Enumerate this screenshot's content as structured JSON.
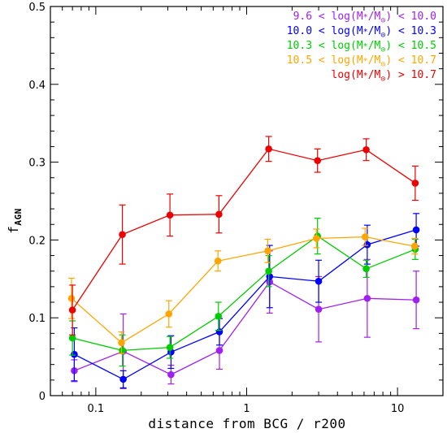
{
  "chart_data": {
    "type": "line",
    "xlabel": "distance from BCG / r200",
    "ylabel": "f",
    "ylabel_sub": "AGN",
    "xscale": "log",
    "xlim": [
      0.05,
      20
    ],
    "ylim": [
      0,
      0.5
    ],
    "x_ticks": [
      {
        "value": 0.1,
        "label": "0.1"
      },
      {
        "value": 1,
        "label": "1"
      },
      {
        "value": 10,
        "label": "10"
      }
    ],
    "y_ticks": [
      {
        "value": 0,
        "label": "0"
      },
      {
        "value": 0.1,
        "label": "0.1"
      },
      {
        "value": 0.2,
        "label": "0.2"
      },
      {
        "value": 0.3,
        "label": "0.3"
      },
      {
        "value": 0.4,
        "label": "0.4"
      },
      {
        "value": 0.5,
        "label": "0.5"
      }
    ],
    "legend_position": "top-right",
    "series": [
      {
        "name": "9.6 < log(M*/M⊙) < 10.0",
        "color": "#a020f0",
        "points": [
          {
            "x": 0.072,
            "y": 0.032,
            "err": 0.014
          },
          {
            "x": 0.152,
            "y": 0.057,
            "err": 0.048
          },
          {
            "x": 0.315,
            "y": 0.027,
            "err": 0.012
          },
          {
            "x": 0.66,
            "y": 0.058,
            "err": 0.024
          },
          {
            "x": 1.42,
            "y": 0.146,
            "err": 0.04
          },
          {
            "x": 3.0,
            "y": 0.111,
            "err": 0.042
          },
          {
            "x": 6.3,
            "y": 0.125,
            "err": 0.05
          },
          {
            "x": 13.3,
            "y": 0.123,
            "err": 0.037
          }
        ]
      },
      {
        "name": "10.0 < log(M*/M⊙) < 10.3",
        "color": "#0000ff",
        "points": [
          {
            "x": 0.072,
            "y": 0.053,
            "err": 0.034
          },
          {
            "x": 0.152,
            "y": 0.021,
            "err": 0.011
          },
          {
            "x": 0.315,
            "y": 0.056,
            "err": 0.021
          },
          {
            "x": 0.66,
            "y": 0.082,
            "err": 0.017
          },
          {
            "x": 1.42,
            "y": 0.153,
            "err": 0.04
          },
          {
            "x": 3.0,
            "y": 0.147,
            "err": 0.027
          },
          {
            "x": 6.3,
            "y": 0.194,
            "err": 0.025
          },
          {
            "x": 13.3,
            "y": 0.213,
            "err": 0.021
          }
        ]
      },
      {
        "name": "10.3 < log(M*/M⊙) < 10.5",
        "color": "#00cc00",
        "points": [
          {
            "x": 0.07,
            "y": 0.074,
            "err": 0.022
          },
          {
            "x": 0.15,
            "y": 0.058,
            "err": 0.02
          },
          {
            "x": 0.31,
            "y": 0.062,
            "err": 0.014
          },
          {
            "x": 0.65,
            "y": 0.102,
            "err": 0.018
          },
          {
            "x": 1.4,
            "y": 0.16,
            "err": 0.02
          },
          {
            "x": 2.95,
            "y": 0.205,
            "err": 0.023
          },
          {
            "x": 6.2,
            "y": 0.163,
            "err": 0.011
          },
          {
            "x": 13.1,
            "y": 0.188,
            "err": 0.013
          }
        ]
      },
      {
        "name": "10.5 < log(M*/M⊙) < 10.7",
        "color": "#ffa500",
        "points": [
          {
            "x": 0.069,
            "y": 0.125,
            "err": 0.026
          },
          {
            "x": 0.148,
            "y": 0.068,
            "err": 0.014
          },
          {
            "x": 0.305,
            "y": 0.105,
            "err": 0.017
          },
          {
            "x": 0.645,
            "y": 0.173,
            "err": 0.013
          },
          {
            "x": 1.38,
            "y": 0.186,
            "err": 0.015
          },
          {
            "x": 2.9,
            "y": 0.202,
            "err": 0.012
          },
          {
            "x": 6.1,
            "y": 0.204,
            "err": 0.011
          },
          {
            "x": 13.0,
            "y": 0.192,
            "err": 0.01
          }
        ]
      },
      {
        "name": "log(M*/M⊙) > 10.7",
        "color": "#ee0000",
        "points": [
          {
            "x": 0.07,
            "y": 0.11,
            "err": 0.032
          },
          {
            "x": 0.15,
            "y": 0.207,
            "err": 0.038
          },
          {
            "x": 0.31,
            "y": 0.232,
            "err": 0.027
          },
          {
            "x": 0.655,
            "y": 0.233,
            "err": 0.024
          },
          {
            "x": 1.4,
            "y": 0.317,
            "err": 0.016
          },
          {
            "x": 2.95,
            "y": 0.302,
            "err": 0.015
          },
          {
            "x": 6.2,
            "y": 0.316,
            "err": 0.014
          },
          {
            "x": 13.1,
            "y": 0.273,
            "err": 0.022
          }
        ]
      }
    ],
    "legend": [
      {
        "parts": [
          "9.6 < log(M",
          "*",
          "/M",
          "⊙",
          ") < 10.0"
        ]
      },
      {
        "parts": [
          "10.0 < log(M",
          "*",
          "/M",
          "⊙",
          ") < 10.3"
        ]
      },
      {
        "parts": [
          "10.3 < log(M",
          "*",
          "/M",
          "⊙",
          ") < 10.5"
        ]
      },
      {
        "parts": [
          "10.5 < log(M",
          "*",
          "/M",
          "⊙",
          ") < 10.7"
        ]
      },
      {
        "parts": [
          "log(M",
          "*",
          "/M",
          "⊙",
          ") > 10.7"
        ]
      }
    ]
  }
}
